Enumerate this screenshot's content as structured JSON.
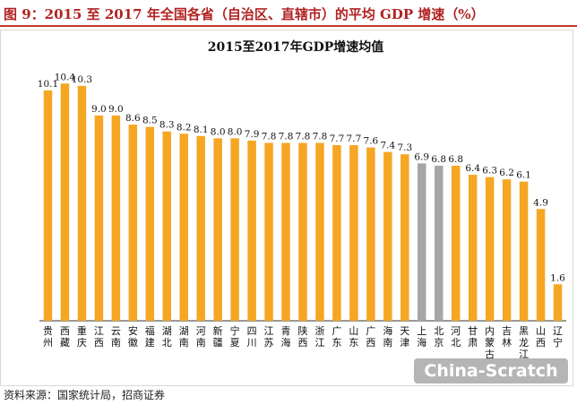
{
  "header": {
    "title": "图 9：2015 至 2017 年全国各省（自治区、直辖市）的平均 GDP 增速（%）"
  },
  "footer": {
    "source": "资料来源：国家统计局，招商证券"
  },
  "watermark": "China-Scratch",
  "colors": {
    "bar": "#f5a623",
    "highlight": "#a6a6a6",
    "title_accent": "#b22222"
  },
  "chart_data": {
    "type": "bar",
    "title": "2015至2017年GDP增速均值",
    "categories": [
      "贵州",
      "西藏",
      "重庆",
      "江西",
      "云南",
      "安徽",
      "福建",
      "湖北",
      "湖南",
      "河南",
      "新疆",
      "宁夏",
      "四川",
      "江苏",
      "青海",
      "陕西",
      "浙江",
      "广东",
      "山东",
      "广西",
      "海南",
      "天津",
      "上海",
      "北京",
      "河北",
      "甘肃",
      "内蒙古",
      "吉林",
      "黑龙江",
      "山西",
      "辽宁"
    ],
    "values": [
      10.1,
      10.4,
      10.3,
      9.0,
      9.0,
      8.6,
      8.5,
      8.3,
      8.2,
      8.1,
      8.0,
      8.0,
      7.9,
      7.8,
      7.8,
      7.8,
      7.8,
      7.7,
      7.7,
      7.6,
      7.4,
      7.3,
      6.9,
      6.8,
      6.8,
      6.4,
      6.3,
      6.2,
      6.1,
      4.9,
      1.6
    ],
    "highlighted": [
      "上海",
      "北京"
    ],
    "ylim": [
      0,
      11
    ],
    "grid": false,
    "legend": "none"
  }
}
